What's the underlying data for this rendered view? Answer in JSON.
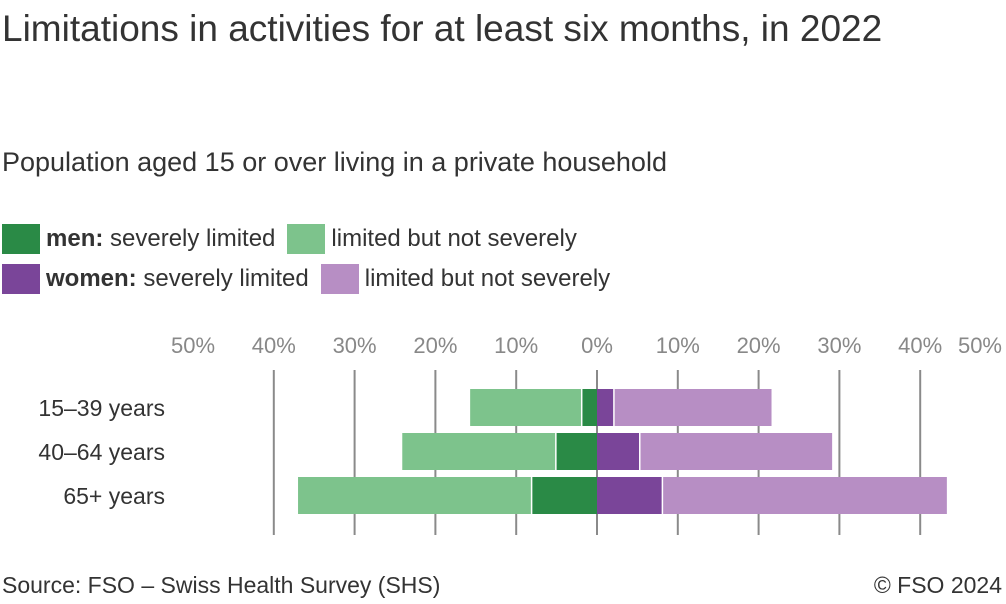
{
  "chart_data": {
    "type": "bar",
    "orientation": "horizontal-diverging",
    "title": "Limitations in activities for at least six months, in 2022",
    "subtitle": "Population aged 15 or over living in a private household",
    "categories": [
      "15–39 years",
      "40–64 years",
      "65+ years"
    ],
    "series": [
      {
        "name": "men: severely limited",
        "group": "men",
        "color": "#2a8a46",
        "values": [
          1.8,
          5.0,
          8.0
        ]
      },
      {
        "name": "men: limited but not severely",
        "group": "men",
        "color": "#7dc38c",
        "values": [
          13.9,
          19.1,
          29.0
        ]
      },
      {
        "name": "women: severely limited",
        "group": "women",
        "color": "#7a4599",
        "values": [
          2.0,
          5.2,
          8.0
        ]
      },
      {
        "name": "women: limited but not severely",
        "group": "women",
        "color": "#b78ec4",
        "values": [
          19.6,
          23.9,
          35.3
        ]
      }
    ],
    "xlim": [
      -50,
      50
    ],
    "ticks": [
      {
        "value": -50,
        "label": "50%"
      },
      {
        "value": -40,
        "label": "40%"
      },
      {
        "value": -30,
        "label": "30%"
      },
      {
        "value": -20,
        "label": "20%"
      },
      {
        "value": -10,
        "label": "10%"
      },
      {
        "value": 0,
        "label": "0%"
      },
      {
        "value": 10,
        "label": "10%"
      },
      {
        "value": 20,
        "label": "20%"
      },
      {
        "value": 30,
        "label": "30%"
      },
      {
        "value": 40,
        "label": "40%"
      },
      {
        "value": 50,
        "label": "50%"
      }
    ],
    "grid": true
  },
  "legend": {
    "men_prefix": "men:",
    "men_severe": " severely limited",
    "men_limited": "limited but not severely",
    "women_prefix": "women:",
    "women_severe": " severely limited",
    "women_limited": "limited but not severely"
  },
  "footer": {
    "source": "Source: FSO – Swiss Health Survey (SHS)",
    "copyright": "© FSO 2024"
  },
  "colors": {
    "grid": "#8a8a8a",
    "tick_text": "#888888"
  }
}
